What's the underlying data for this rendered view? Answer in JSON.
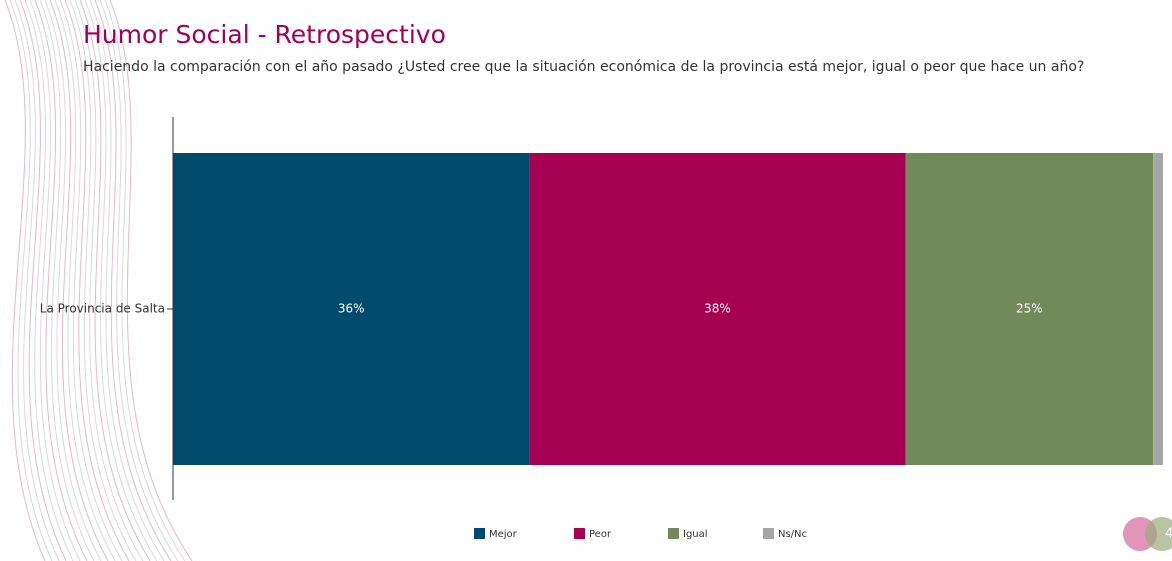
{
  "chart_data": {
    "type": "stacked-bar-horizontal",
    "title": "Humor Social - Retrospectivo",
    "subtitle": "Haciendo la comparación con el año pasado ¿Usted cree que la situación económica de la provincia está mejor, igual o peor que hace un año?",
    "categories": [
      "La Provincia de Salta"
    ],
    "xlim": [
      0,
      100
    ],
    "series": [
      {
        "name": "Mejor",
        "color": "#004a6b",
        "values": [
          36
        ],
        "value_labels": [
          "36%"
        ]
      },
      {
        "name": "Peor",
        "color": "#a50052",
        "values": [
          38
        ],
        "value_labels": [
          "38%"
        ]
      },
      {
        "name": "Igual",
        "color": "#72895a",
        "values": [
          25
        ],
        "value_labels": [
          "25%"
        ]
      },
      {
        "name": "Ns/Nc",
        "color": "#a6a6a6",
        "values": [
          1
        ]
      }
    ],
    "legend": "bottom",
    "page_number": "4"
  }
}
